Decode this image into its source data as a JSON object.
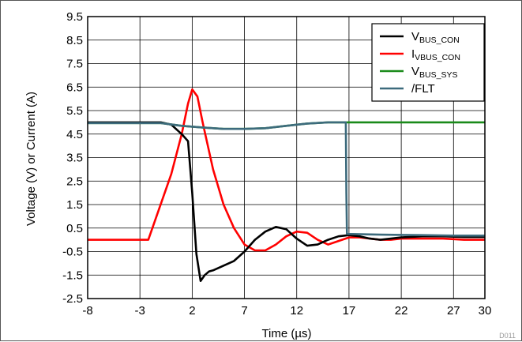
{
  "figure_id": "D011",
  "chart_data": {
    "type": "line",
    "xlabel": "Time (µs)",
    "ylabel": "Voltage (V) or Current (A)",
    "xlim": [
      -8,
      30
    ],
    "ylim": [
      -2.5,
      9.5
    ],
    "xticks": [
      -8,
      -3,
      2,
      7,
      12,
      17,
      22,
      27,
      30
    ],
    "yticks": [
      -2.5,
      -1.5,
      -0.5,
      0.5,
      1.5,
      2.5,
      3.5,
      4.5,
      5.5,
      6.5,
      7.5,
      8.5,
      9.5
    ],
    "grid": true,
    "legend_position": "top-right",
    "series": [
      {
        "name": "VBUS_CON",
        "label_main": "V",
        "label_sub": "BUS_CON",
        "color": "#000000",
        "x": [
          -8,
          -4,
          -1,
          0,
          1,
          1.6,
          2,
          2.4,
          2.8,
          3.2,
          3.6,
          4,
          6,
          7,
          8,
          9,
          10,
          11,
          12,
          13,
          14,
          15,
          16,
          17,
          18,
          19,
          20,
          21,
          22,
          24,
          26,
          28,
          30
        ],
        "y": [
          5.0,
          5.0,
          5.0,
          4.9,
          4.5,
          4.2,
          2.0,
          -0.6,
          -1.75,
          -1.5,
          -1.35,
          -1.3,
          -0.9,
          -0.5,
          0.0,
          0.35,
          0.55,
          0.45,
          0.05,
          -0.25,
          -0.2,
          0.0,
          0.15,
          0.2,
          0.15,
          0.05,
          0.0,
          0.05,
          0.1,
          0.15,
          0.15,
          0.12,
          0.12
        ]
      },
      {
        "name": "IVBUS_CON",
        "label_main": "I",
        "label_sub": "VBUS_CON",
        "color": "#ff0000",
        "x": [
          -8,
          -2.5,
          -2.2,
          0,
          1,
          1.6,
          2,
          2.5,
          3,
          4,
          5,
          6,
          7,
          8,
          9,
          10,
          11,
          12,
          13,
          14,
          15,
          16,
          17,
          18,
          19,
          20,
          21,
          22,
          24,
          26,
          28,
          30
        ],
        "y": [
          0.0,
          0.0,
          0.0,
          2.8,
          4.5,
          5.8,
          6.4,
          6.1,
          5.0,
          3.0,
          1.5,
          0.5,
          -0.2,
          -0.45,
          -0.45,
          -0.2,
          0.15,
          0.35,
          0.3,
          0.0,
          -0.2,
          -0.05,
          0.1,
          0.1,
          0.05,
          0.0,
          0.0,
          0.05,
          0.05,
          0.05,
          0.0,
          0.0
        ]
      },
      {
        "name": "VBUS_SYS",
        "label_main": "V",
        "label_sub": "BUS_SYS",
        "color": "#1a8a1a",
        "x": [
          -8,
          -1,
          1,
          3,
          5,
          7,
          9,
          11,
          13,
          15,
          17,
          20,
          24,
          27,
          30
        ],
        "y": [
          4.97,
          4.97,
          4.85,
          4.78,
          4.72,
          4.72,
          4.75,
          4.85,
          4.95,
          5.0,
          5.0,
          5.0,
          5.0,
          5.0,
          5.0
        ]
      },
      {
        "name": "/FLT",
        "label_main": "/FLT",
        "label_sub": "",
        "color": "#3d6b7d",
        "x": [
          -8,
          -1,
          1,
          3,
          5,
          7,
          9,
          11,
          13,
          15,
          16.7,
          16.75,
          16.8,
          20,
          24,
          27,
          30
        ],
        "y": [
          4.97,
          4.97,
          4.85,
          4.78,
          4.72,
          4.72,
          4.75,
          4.85,
          4.95,
          5.0,
          5.0,
          2.0,
          0.25,
          0.22,
          0.2,
          0.18,
          0.18
        ]
      }
    ]
  }
}
